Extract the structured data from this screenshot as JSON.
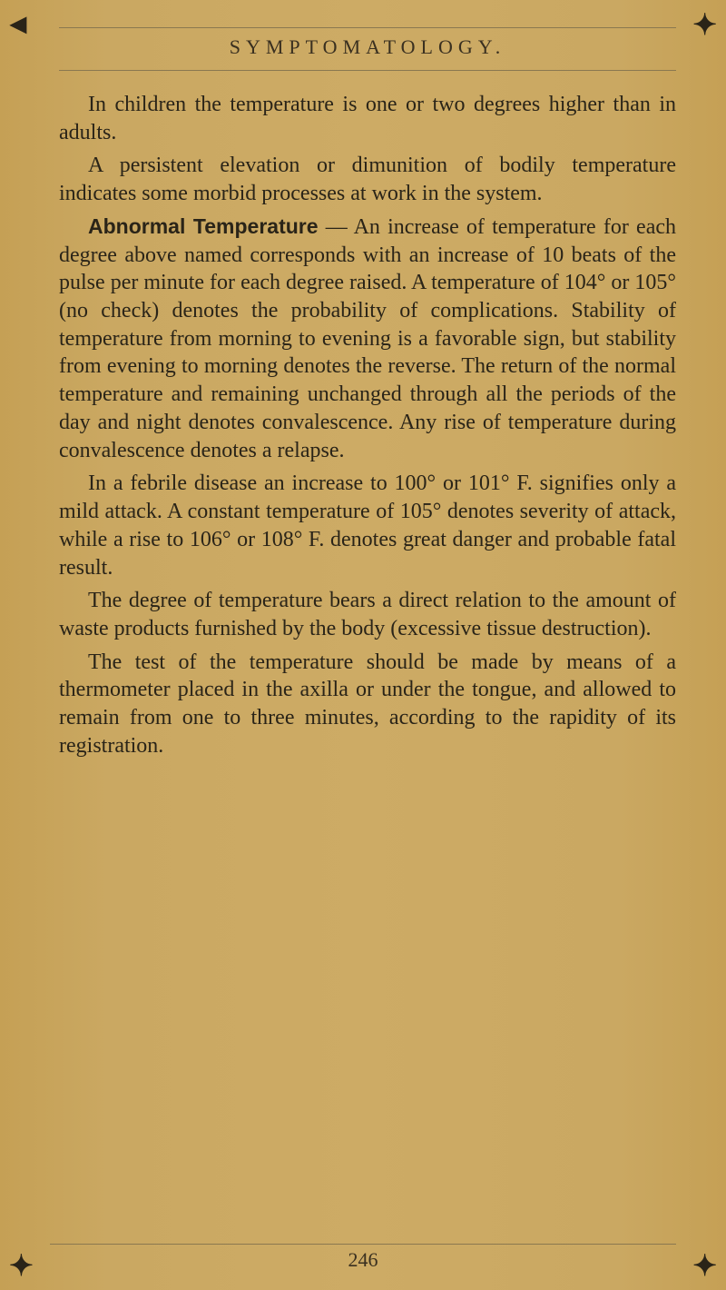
{
  "page": {
    "header": "SYMPTOMATOLOGY.",
    "page_number": "246",
    "paragraphs": {
      "p1": "In children the temperature is one or two degrees higher than in adults.",
      "p2": "A persistent elevation or dimunition of bodily temperature indicates some morbid processes at work in the system.",
      "p3_bold": "Abnormal Temperature",
      "p3_rest": " — An increase of temperature for each degree above named corresponds with an increase of 10 beats of the pulse per minute for each degree raised. A temperature of 104° or 105° (no check) denotes the probability of complications. Stability of temperature from morning to evening is a favorable sign, but stability from evening to morning denotes the reverse. The return of the normal temperature and remaining unchanged through all the periods of the day and night denotes convalescence. Any rise of temperature during convalescence denotes a relapse.",
      "p4": "In a febrile disease an increase to 100° or 101° F. signifies only a mild attack. A constant temperature of 105° denotes severity of attack, while a rise to 106° or 108° F. denotes great danger and probable fatal result.",
      "p5": "The degree of temperature bears a direct relation to the amount of waste products furnished by the body (excessive tissue destruction).",
      "p6": "The test of the temperature should be made by means of a thermometer placed in the axilla or under the tongue, and allowed to remain from one to three minutes, according to the rapidity of its registration."
    },
    "corner_marks": {
      "top_left": "◄",
      "top_right": "✦",
      "bottom_left": "✦",
      "bottom_right": "✦"
    },
    "colors": {
      "background": "#c9a860",
      "text": "#2a2418",
      "rule": "#8a7850"
    }
  }
}
